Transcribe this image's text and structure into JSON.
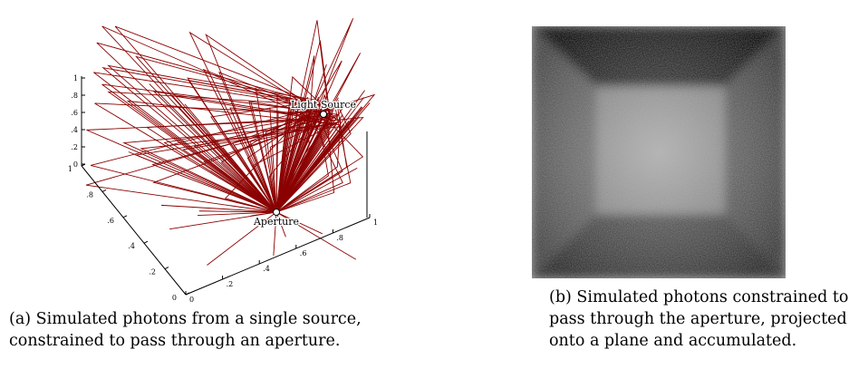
{
  "figure_a": {
    "labels": {
      "light_source": "Light Source",
      "aperture": "Aperture"
    },
    "z_ticks": [
      "0",
      ".2",
      ".4",
      ".6",
      ".8",
      "1"
    ],
    "left_ticks": [
      "1",
      ".8",
      ".6",
      ".4",
      ".2",
      "0"
    ],
    "right_ticks": [
      "0",
      ".2",
      ".4",
      ".6",
      ".8",
      "1"
    ],
    "caption": [
      "(a) Simulated photons from a single source,",
      "constrained to pass through an aperture."
    ]
  },
  "figure_b": {
    "caption": [
      "(b) Simulated photons constrained to",
      "pass through the aperture, projected",
      "onto a plane and accumulated."
    ]
  }
}
